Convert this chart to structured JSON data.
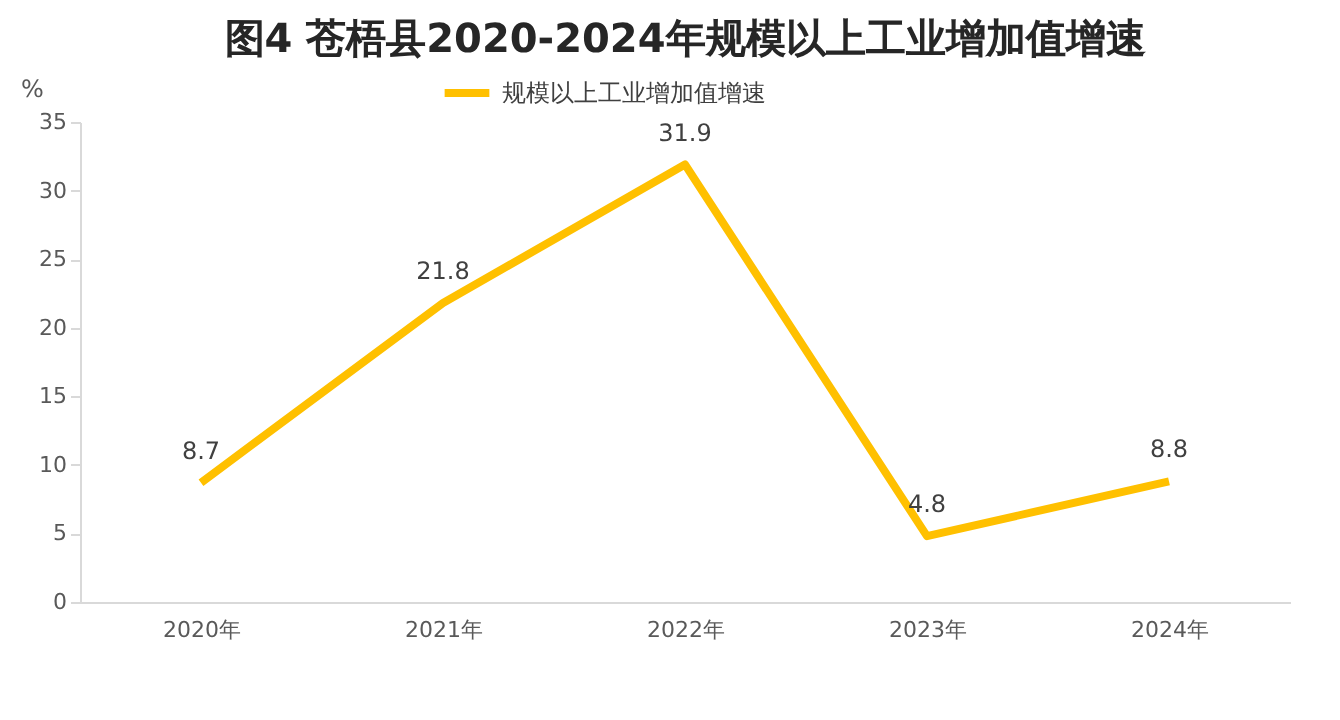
{
  "chart_data": {
    "type": "line",
    "title": "图4  苍梧县2020-2024年规模以上工业增加值增速",
    "ylabel": "%",
    "categories": [
      "2020年",
      "2021年",
      "2022年",
      "2023年",
      "2024年"
    ],
    "series": [
      {
        "name": "规模以上工业增加值增速",
        "color": "#ffc000",
        "values": [
          8.7,
          21.8,
          31.9,
          4.8,
          8.8
        ]
      }
    ],
    "ylim": [
      0,
      35
    ],
    "yticks": [
      0,
      5,
      10,
      15,
      20,
      25,
      30,
      35
    ],
    "data_labels": true,
    "legend": "top",
    "grid": false,
    "marker": "none",
    "line_style": "solid"
  }
}
